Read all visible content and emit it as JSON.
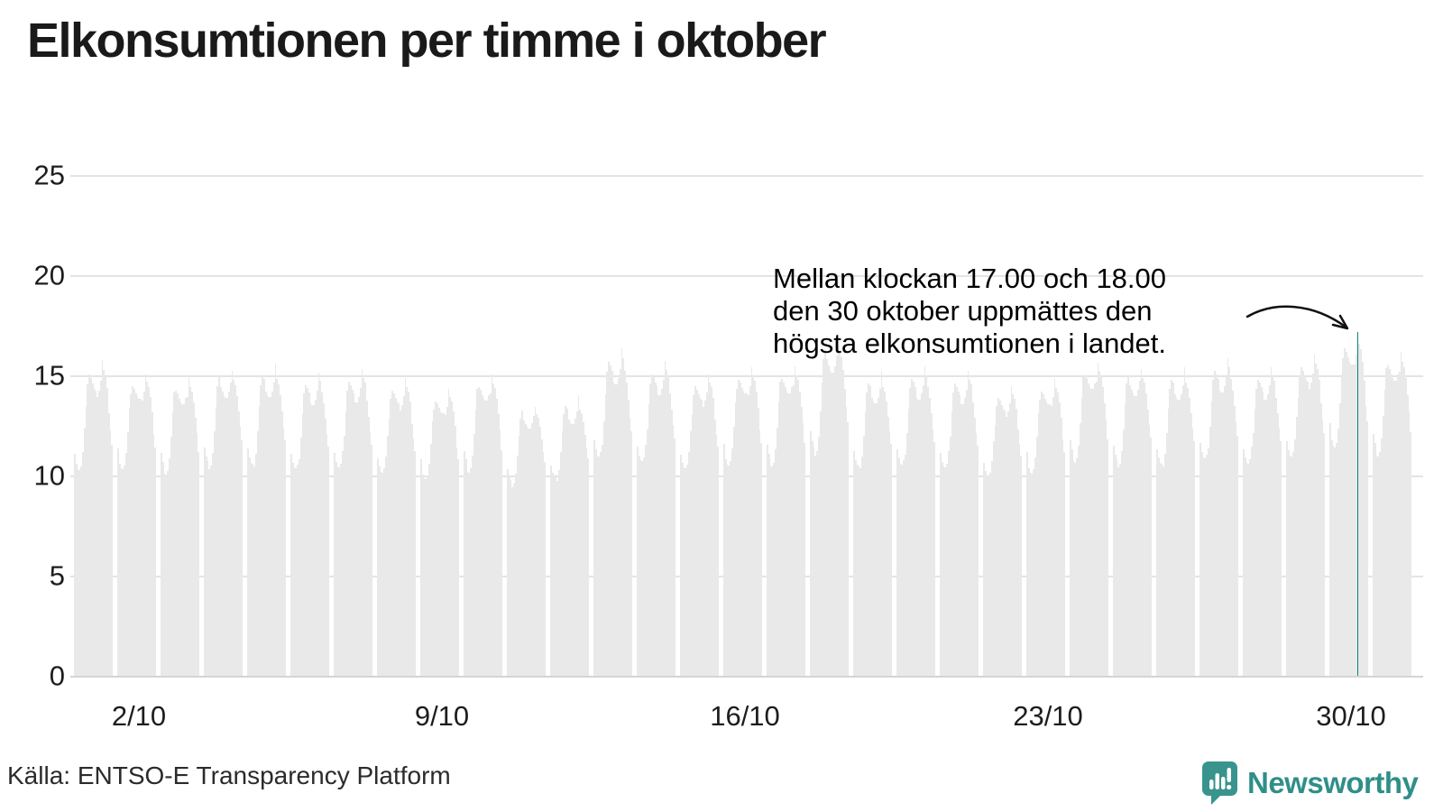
{
  "title": "Elkonsumtionen per timme i oktober",
  "annotation": {
    "lines": [
      "Mellan klockan 17.00 och 18.00",
      "den 30 oktober uppmättes den",
      "högsta elkonsumtionen i landet."
    ]
  },
  "source": "Källa: ENTSO-E Transparency Platform",
  "logo": {
    "text": "Newsworthy"
  },
  "colors": {
    "bar": "#e9e9e9",
    "highlight": "#0a837b",
    "grid": "#e3e3e8",
    "baseline": "#d4d4d8",
    "logo_teal": "#2f8f88",
    "logo_icon": "#38948c",
    "text": "#1a1a1a"
  },
  "chart_data": {
    "type": "bar",
    "title": "Elkonsumtionen per timme i oktober",
    "xlabel": "",
    "ylabel": "",
    "ylim": [
      0,
      25
    ],
    "y_ticks": [
      0,
      5,
      10,
      15,
      20,
      25
    ],
    "x_ticks": [
      {
        "label": "2/10",
        "day_index": 1
      },
      {
        "label": "9/10",
        "day_index": 8
      },
      {
        "label": "16/10",
        "day_index": 15
      },
      {
        "label": "23/10",
        "day_index": 22
      },
      {
        "label": "30/10",
        "day_index": 29
      }
    ],
    "grid": "horizontal",
    "legend": "none",
    "hour_shape": [
      0.18,
      0.08,
      0.02,
      0.0,
      0.03,
      0.15,
      0.36,
      0.6,
      0.8,
      0.88,
      0.84,
      0.78,
      0.73,
      0.7,
      0.69,
      0.74,
      0.82,
      1.0,
      0.9,
      0.84,
      0.72,
      0.55,
      0.38,
      0.24
    ],
    "days": [
      {
        "date": "1/10",
        "min": 10.3,
        "peak": 15.8
      },
      {
        "date": "2/10",
        "min": 10.4,
        "peak": 15.2
      },
      {
        "date": "3/10",
        "min": 10.2,
        "peak": 15.0
      },
      {
        "date": "4/10",
        "min": 10.5,
        "peak": 15.4
      },
      {
        "date": "5/10",
        "min": 10.5,
        "peak": 15.5
      },
      {
        "date": "6/10",
        "min": 10.3,
        "peak": 15.1
      },
      {
        "date": "7/10",
        "min": 10.4,
        "peak": 15.3
      },
      {
        "date": "8/10",
        "min": 10.2,
        "peak": 14.9
      },
      {
        "date": "9/10",
        "min": 9.9,
        "peak": 14.4
      },
      {
        "date": "10/10",
        "min": 10.3,
        "peak": 15.2
      },
      {
        "date": "11/10",
        "min": 9.6,
        "peak": 13.6
      },
      {
        "date": "12/10",
        "min": 9.8,
        "peak": 13.9
      },
      {
        "date": "13/10",
        "min": 10.9,
        "peak": 16.3
      },
      {
        "date": "14/10",
        "min": 10.7,
        "peak": 15.7
      },
      {
        "date": "15/10",
        "min": 10.4,
        "peak": 15.1
      },
      {
        "date": "16/10",
        "min": 10.6,
        "peak": 15.5
      },
      {
        "date": "17/10",
        "min": 10.6,
        "peak": 15.6
      },
      {
        "date": "18/10",
        "min": 11.2,
        "peak": 16.9
      },
      {
        "date": "19/10",
        "min": 10.4,
        "peak": 15.1
      },
      {
        "date": "20/10",
        "min": 10.5,
        "peak": 15.4
      },
      {
        "date": "21/10",
        "min": 10.4,
        "peak": 15.2
      },
      {
        "date": "22/10",
        "min": 10.0,
        "peak": 14.5
      },
      {
        "date": "23/10",
        "min": 10.2,
        "peak": 14.9
      },
      {
        "date": "24/10",
        "min": 10.8,
        "peak": 15.8
      },
      {
        "date": "25/10",
        "min": 10.6,
        "peak": 15.5
      },
      {
        "date": "26/10",
        "min": 10.5,
        "peak": 15.3
      },
      {
        "date": "27/10",
        "min": 10.8,
        "peak": 15.8
      },
      {
        "date": "28/10",
        "min": 10.6,
        "peak": 15.4
      },
      {
        "date": "29/10",
        "min": 11.0,
        "peak": 16.1
      },
      {
        "date": "30/10",
        "min": 11.5,
        "peak": 17.2
      },
      {
        "date": "31/10",
        "min": 11.1,
        "peak": 16.3
      }
    ],
    "highlight": {
      "date": "30/10",
      "day_index": 29,
      "hour_index": 17,
      "hour_label": "17.00–18.00",
      "value": 17.2
    }
  }
}
